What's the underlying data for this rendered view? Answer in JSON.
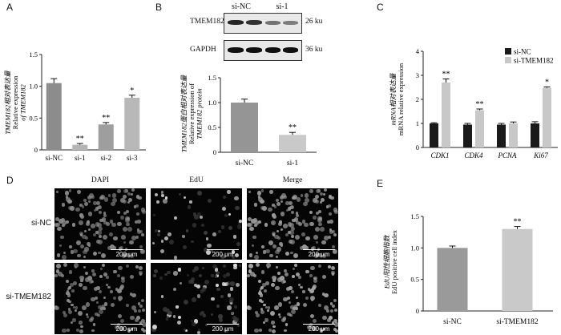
{
  "panels": {
    "A": "A",
    "B": "B",
    "C": "C",
    "D": "D",
    "E": "E"
  },
  "colors": {
    "bar_dark": "#1a1a1a",
    "bar_mid": "#808080",
    "bar_light": "#c8c8c8",
    "bar_lighter": "#bdbdbd"
  },
  "western_blot": {
    "lanes": [
      "si-NC",
      "si-1"
    ],
    "rows": [
      {
        "protein": "TMEM182",
        "size": "26 ku"
      },
      {
        "protein": "GAPDH",
        "size": "36 ku"
      }
    ]
  },
  "microscopy": {
    "columns": [
      "DAPI",
      "EdU",
      "Merge"
    ],
    "rows": [
      "si-NC",
      "si-TMEM182"
    ],
    "scale_label": "200 μm"
  },
  "chart_data": [
    {
      "type": "bar",
      "panel": "A",
      "categories": [
        "si-NC",
        "si-1",
        "si-2",
        "si-3"
      ],
      "values": [
        1.05,
        0.08,
        0.4,
        0.82
      ],
      "errors": [
        0.07,
        0.02,
        0.03,
        0.04
      ],
      "significance": [
        "",
        "**",
        "**",
        "*"
      ],
      "ylabel_lines": [
        "TMEM182相对表达量",
        "Relative expression",
        "of TMEM182"
      ],
      "ylim": [
        0,
        1.5
      ],
      "yticks": [
        "0",
        "0.5",
        "1.0",
        "1.5"
      ]
    },
    {
      "type": "bar",
      "panel": "B",
      "categories": [
        "si-NC",
        "si-1"
      ],
      "values": [
        1.0,
        0.35
      ],
      "errors": [
        0.07,
        0.05
      ],
      "significance": [
        "",
        "**"
      ],
      "ylabel_lines": [
        "TMEM182蛋白相对表达量",
        "Relative expression of",
        "TMEM182 protein"
      ],
      "ylim": [
        0,
        1.5
      ],
      "yticks": [
        "0",
        "0.5",
        "1.0",
        "1.5"
      ]
    },
    {
      "type": "bar",
      "panel": "C",
      "categories": [
        "CDK1",
        "CDK4",
        "PCNA",
        "Ki67"
      ],
      "series": [
        {
          "name": "si-NC",
          "values": [
            1.0,
            0.95,
            0.95,
            1.0
          ],
          "errors": [
            0.03,
            0.05,
            0.05,
            0.07
          ]
        },
        {
          "name": "si-TMEM182",
          "values": [
            2.7,
            1.55,
            1.0,
            2.48
          ],
          "errors": [
            0.15,
            0.05,
            0.06,
            0.04
          ]
        }
      ],
      "significance": [
        "**",
        "**",
        "",
        "*"
      ],
      "ylabel_lines": [
        "mRNA相对表达量",
        "mRNA relative expression"
      ],
      "ylim": [
        0,
        4
      ],
      "yticks": [
        "0",
        "1",
        "2",
        "3",
        "4"
      ],
      "legend": "top-right"
    },
    {
      "type": "bar",
      "panel": "E",
      "categories": [
        "si-NC",
        "si-TMEM182"
      ],
      "values": [
        1.0,
        1.3
      ],
      "errors": [
        0.03,
        0.04
      ],
      "significance": [
        "",
        "**"
      ],
      "ylabel_lines": [
        "EdU阳性细胞指数",
        "EdU positive cell index"
      ],
      "ylim": [
        0,
        1.5
      ],
      "yticks": [
        "0",
        "0.5",
        "1.0",
        "1.5"
      ]
    }
  ]
}
